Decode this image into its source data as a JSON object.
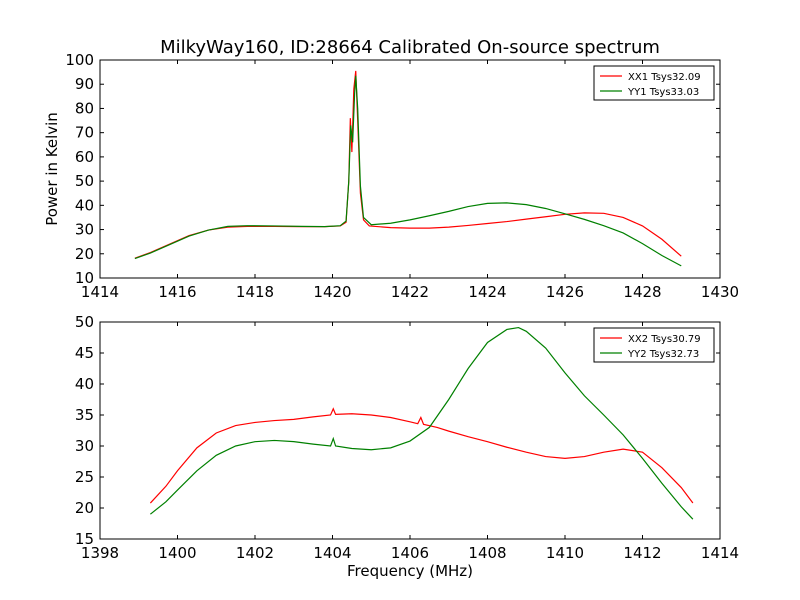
{
  "title": "MilkyWay160, ID:28664 Calibrated On-source spectrum",
  "chart_data": [
    {
      "type": "line",
      "xlabel": "",
      "ylabel": "Power in Kelvin",
      "xlim": [
        1414,
        1430
      ],
      "ylim": [
        10,
        100
      ],
      "xticks": [
        1414,
        1416,
        1418,
        1420,
        1422,
        1424,
        1426,
        1428,
        1430
      ],
      "yticks": [
        10,
        20,
        30,
        40,
        50,
        60,
        70,
        80,
        90,
        100
      ],
      "legend_position": "top-right",
      "grid": false,
      "series": [
        {
          "name": "XX1 Tsys32.09",
          "color": "#ff0000",
          "points": [
            [
              1414.9,
              18.2
            ],
            [
              1415.3,
              20.5
            ],
            [
              1415.8,
              24.0
            ],
            [
              1416.3,
              27.5
            ],
            [
              1416.8,
              29.8
            ],
            [
              1417.3,
              31.0
            ],
            [
              1417.8,
              31.3
            ],
            [
              1418.5,
              31.3
            ],
            [
              1419.2,
              31.2
            ],
            [
              1419.8,
              31.2
            ],
            [
              1420.2,
              31.5
            ],
            [
              1420.35,
              33.0
            ],
            [
              1420.42,
              50.0
            ],
            [
              1420.46,
              76.0
            ],
            [
              1420.5,
              62.0
            ],
            [
              1420.55,
              88.0
            ],
            [
              1420.6,
              95.5
            ],
            [
              1420.65,
              75.0
            ],
            [
              1420.72,
              45.0
            ],
            [
              1420.8,
              34.0
            ],
            [
              1420.95,
              31.5
            ],
            [
              1421.5,
              30.8
            ],
            [
              1422.0,
              30.6
            ],
            [
              1422.5,
              30.6
            ],
            [
              1423.0,
              31.0
            ],
            [
              1423.5,
              31.7
            ],
            [
              1424.0,
              32.5
            ],
            [
              1424.5,
              33.3
            ],
            [
              1425.0,
              34.3
            ],
            [
              1425.5,
              35.3
            ],
            [
              1426.0,
              36.3
            ],
            [
              1426.5,
              36.9
            ],
            [
              1427.0,
              36.7
            ],
            [
              1427.5,
              35.0
            ],
            [
              1428.0,
              31.5
            ],
            [
              1428.5,
              26.0
            ],
            [
              1429.0,
              19.0
            ]
          ]
        },
        {
          "name": "YY1 Tsys33.03",
          "color": "#008000",
          "points": [
            [
              1414.9,
              18.0
            ],
            [
              1415.3,
              20.3
            ],
            [
              1415.8,
              23.8
            ],
            [
              1416.3,
              27.3
            ],
            [
              1416.8,
              29.8
            ],
            [
              1417.3,
              31.3
            ],
            [
              1417.8,
              31.6
            ],
            [
              1418.5,
              31.5
            ],
            [
              1419.2,
              31.3
            ],
            [
              1419.8,
              31.2
            ],
            [
              1420.2,
              31.6
            ],
            [
              1420.35,
              33.5
            ],
            [
              1420.42,
              50.0
            ],
            [
              1420.47,
              73.0
            ],
            [
              1420.52,
              66.0
            ],
            [
              1420.57,
              86.0
            ],
            [
              1420.6,
              93.5
            ],
            [
              1420.65,
              80.0
            ],
            [
              1420.72,
              48.0
            ],
            [
              1420.8,
              35.0
            ],
            [
              1421.0,
              32.0
            ],
            [
              1421.5,
              32.6
            ],
            [
              1422.0,
              34.0
            ],
            [
              1422.5,
              35.7
            ],
            [
              1423.0,
              37.5
            ],
            [
              1423.5,
              39.5
            ],
            [
              1424.0,
              40.8
            ],
            [
              1424.5,
              41.0
            ],
            [
              1425.0,
              40.3
            ],
            [
              1425.5,
              38.7
            ],
            [
              1426.0,
              36.5
            ],
            [
              1426.5,
              34.2
            ],
            [
              1427.0,
              31.6
            ],
            [
              1427.5,
              28.6
            ],
            [
              1428.0,
              24.2
            ],
            [
              1428.5,
              19.3
            ],
            [
              1429.0,
              15.0
            ]
          ]
        }
      ]
    },
    {
      "type": "line",
      "xlabel": "Frequency (MHz)",
      "ylabel": "",
      "xlim": [
        1398,
        1414
      ],
      "ylim": [
        15,
        50
      ],
      "xticks": [
        1398,
        1400,
        1402,
        1404,
        1406,
        1408,
        1410,
        1412,
        1414
      ],
      "yticks": [
        15,
        20,
        25,
        30,
        35,
        40,
        45,
        50
      ],
      "legend_position": "top-right",
      "grid": false,
      "series": [
        {
          "name": "XX2 Tsys30.79",
          "color": "#ff0000",
          "points": [
            [
              1399.3,
              20.8
            ],
            [
              1399.7,
              23.5
            ],
            [
              1400.0,
              26.0
            ],
            [
              1400.5,
              29.7
            ],
            [
              1401.0,
              32.1
            ],
            [
              1401.5,
              33.3
            ],
            [
              1402.0,
              33.8
            ],
            [
              1402.5,
              34.1
            ],
            [
              1403.0,
              34.3
            ],
            [
              1403.5,
              34.7
            ],
            [
              1403.95,
              35.0
            ],
            [
              1404.02,
              36.0
            ],
            [
              1404.08,
              35.1
            ],
            [
              1404.5,
              35.2
            ],
            [
              1405.0,
              35.0
            ],
            [
              1405.5,
              34.6
            ],
            [
              1406.0,
              33.9
            ],
            [
              1406.2,
              33.6
            ],
            [
              1406.28,
              34.6
            ],
            [
              1406.35,
              33.5
            ],
            [
              1406.7,
              33.0
            ],
            [
              1407.0,
              32.4
            ],
            [
              1407.5,
              31.5
            ],
            [
              1408.0,
              30.7
            ],
            [
              1408.5,
              29.8
            ],
            [
              1409.0,
              29.0
            ],
            [
              1409.5,
              28.3
            ],
            [
              1410.0,
              28.0
            ],
            [
              1410.5,
              28.3
            ],
            [
              1411.0,
              29.0
            ],
            [
              1411.5,
              29.5
            ],
            [
              1412.0,
              29.0
            ],
            [
              1412.5,
              26.5
            ],
            [
              1413.0,
              23.3
            ],
            [
              1413.3,
              20.8
            ]
          ]
        },
        {
          "name": "YY2 Tsys32.73",
          "color": "#008000",
          "points": [
            [
              1399.3,
              19.0
            ],
            [
              1399.7,
              21.0
            ],
            [
              1400.0,
              22.9
            ],
            [
              1400.5,
              26.0
            ],
            [
              1401.0,
              28.5
            ],
            [
              1401.5,
              30.0
            ],
            [
              1402.0,
              30.7
            ],
            [
              1402.5,
              30.9
            ],
            [
              1403.0,
              30.7
            ],
            [
              1403.5,
              30.3
            ],
            [
              1403.95,
              30.0
            ],
            [
              1404.02,
              31.2
            ],
            [
              1404.08,
              30.0
            ],
            [
              1404.5,
              29.6
            ],
            [
              1405.0,
              29.4
            ],
            [
              1405.5,
              29.7
            ],
            [
              1406.0,
              30.8
            ],
            [
              1406.5,
              33.0
            ],
            [
              1407.0,
              37.5
            ],
            [
              1407.5,
              42.5
            ],
            [
              1408.0,
              46.7
            ],
            [
              1408.5,
              48.8
            ],
            [
              1408.8,
              49.1
            ],
            [
              1409.0,
              48.5
            ],
            [
              1409.5,
              45.8
            ],
            [
              1410.0,
              41.8
            ],
            [
              1410.5,
              38.1
            ],
            [
              1411.0,
              35.0
            ],
            [
              1411.5,
              31.8
            ],
            [
              1412.0,
              28.0
            ],
            [
              1412.5,
              24.0
            ],
            [
              1413.0,
              20.2
            ],
            [
              1413.3,
              18.2
            ]
          ]
        }
      ]
    }
  ]
}
